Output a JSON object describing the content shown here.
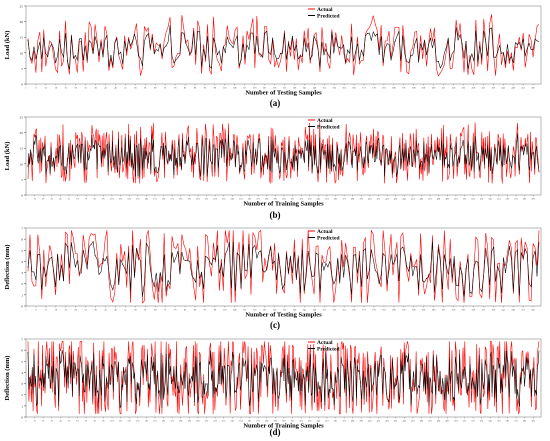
{
  "colors": {
    "actual": "#ff0000",
    "predicted": "#000000",
    "frame": "#888888"
  },
  "chart_data": [
    {
      "type": "line",
      "ylabel": "Load (kN)",
      "xlabel": "Number of Testing Samples",
      "caption": "(a)",
      "legend": [
        "Actual",
        "Predicted"
      ],
      "legend_position": "top-right",
      "ylim": [
        0,
        25
      ],
      "yticks": [
        0,
        5,
        10,
        15,
        20,
        25
      ],
      "x_range": [
        1,
        260
      ],
      "approx_samples": 260,
      "value_mean": 11,
      "value_spread": 6,
      "series": [
        {
          "name": "Actual"
        },
        {
          "name": "Predicted"
        }
      ]
    },
    {
      "type": "line",
      "ylabel": "Load (kN)",
      "xlabel": "Number of Training Samples",
      "caption": "(b)",
      "legend": [
        "Actual",
        "Predicted"
      ],
      "legend_position": "top-right",
      "ylim": [
        0,
        25
      ],
      "yticks": [
        0,
        5,
        10,
        15,
        20,
        25
      ],
      "x_range": [
        1,
        600
      ],
      "approx_samples": 600,
      "value_mean": 12,
      "value_spread": 6,
      "series": [
        {
          "name": "Actual"
        },
        {
          "name": "Predicted"
        }
      ]
    },
    {
      "type": "line",
      "ylabel": "Deflection (mm)",
      "xlabel": "Number of Testing Samples",
      "caption": "(c)",
      "legend": [
        "Actual",
        "Predicted"
      ],
      "legend_position": "top-right",
      "ylim": [
        0,
        7
      ],
      "yticks": [
        0,
        1,
        2,
        3,
        4,
        5,
        6,
        7
      ],
      "x_range": [
        1,
        260
      ],
      "approx_samples": 260,
      "value_mean": 3.3,
      "value_spread": 2.4,
      "series": [
        {
          "name": "Actual"
        },
        {
          "name": "Predicted"
        }
      ]
    },
    {
      "type": "line",
      "ylabel": "Deflection (mm)",
      "xlabel": "Number of Training Samples",
      "caption": "(d)",
      "legend": [
        "Actual",
        "Predicted"
      ],
      "legend_position": "top-right",
      "ylim": [
        0,
        7
      ],
      "yticks": [
        0,
        1,
        2,
        3,
        4,
        5,
        6,
        7
      ],
      "x_range": [
        1,
        600
      ],
      "approx_samples": 600,
      "value_mean": 3.3,
      "value_spread": 2.4,
      "series": [
        {
          "name": "Actual"
        },
        {
          "name": "Predicted"
        }
      ]
    }
  ]
}
